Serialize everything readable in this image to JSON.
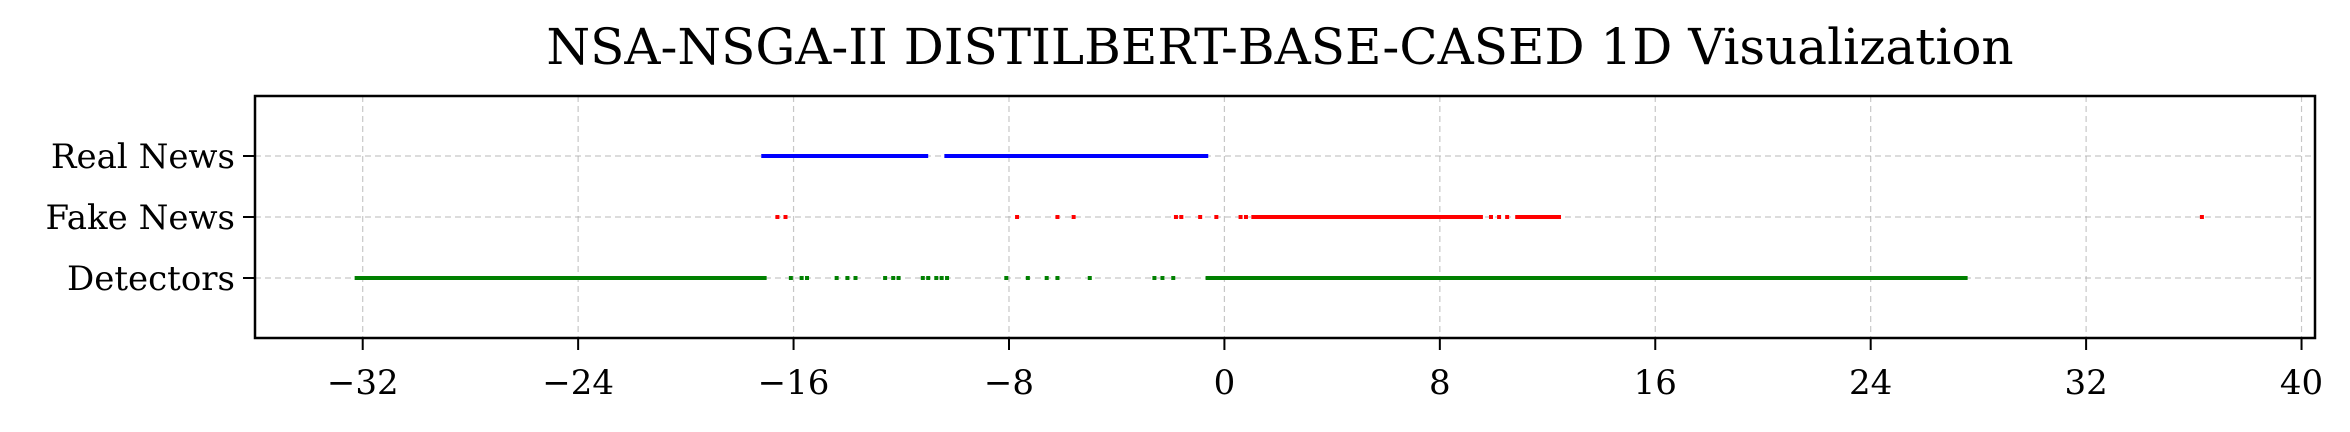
{
  "chart_data": {
    "type": "scatter",
    "title": "NSA-NSGA-II DISTILBERT-BASE-CASED 1D Visualization",
    "xlabel": "",
    "ylabel": "",
    "xlim": [
      -36,
      40.5
    ],
    "xticks": [
      -32,
      -24,
      -16,
      -8,
      0,
      8,
      16,
      24,
      32,
      40
    ],
    "xtick_labels": [
      "−32",
      "−24",
      "−16",
      "−8",
      "0",
      "8",
      "16",
      "24",
      "32",
      "40"
    ],
    "categories": [
      "Real News",
      "Fake News",
      "Detectors"
    ],
    "grid": true,
    "legend": "none",
    "series": [
      {
        "category": "Real News",
        "color": "#0000ff",
        "segments": [
          [
            -17.2,
            -11.0
          ],
          [
            -10.4,
            -0.6
          ]
        ],
        "points": [
          -15.3,
          -14.9,
          -12.2,
          -11.6,
          -10.1,
          -7.9,
          -6.3,
          -5.2,
          -3.4,
          -2.1
        ]
      },
      {
        "category": "Fake News",
        "color": "#ff0000",
        "segments": [
          [
            1.0,
            9.6
          ],
          [
            10.8,
            12.5
          ]
        ],
        "points": [
          -16.6,
          -16.3,
          -7.7,
          -6.2,
          -5.6,
          -1.8,
          -1.6,
          -0.9,
          -0.3,
          0.6,
          0.8,
          9.9,
          10.2,
          10.5,
          36.3
        ]
      },
      {
        "category": "Detectors",
        "color": "#008000",
        "segments": [
          [
            -32.3,
            -17.0
          ],
          [
            -0.7,
            27.6
          ]
        ],
        "points": [
          -16.1,
          -15.7,
          -15.5,
          -14.4,
          -14.0,
          -13.7,
          -12.6,
          -12.3,
          -12.1,
          -11.2,
          -11.0,
          -10.7,
          -10.5,
          -10.3,
          -8.1,
          -7.3,
          -6.6,
          -6.2,
          -5.0,
          -2.6,
          -2.3,
          -1.9
        ]
      }
    ]
  }
}
